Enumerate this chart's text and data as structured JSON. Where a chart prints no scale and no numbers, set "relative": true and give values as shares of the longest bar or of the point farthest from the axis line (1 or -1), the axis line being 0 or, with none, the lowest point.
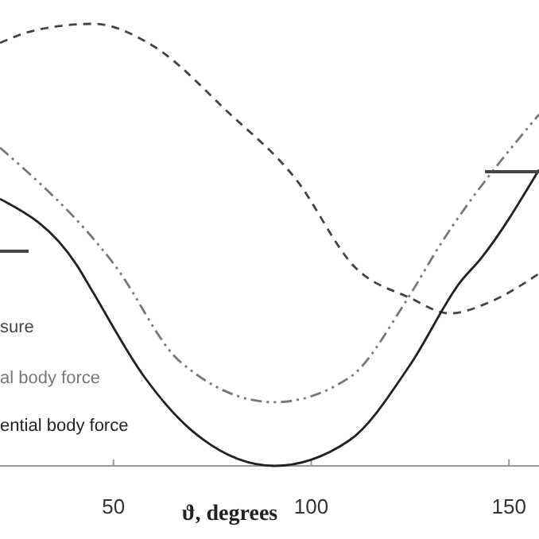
{
  "chart_data": {
    "type": "line",
    "relative": true,
    "xlabel": "ϑ, degrees",
    "xlim": [
      21.3,
      157.6
    ],
    "xticks": [
      50,
      100,
      150
    ],
    "legend": "left",
    "grid": false,
    "series": [
      {
        "name": "sure",
        "color": "#444444",
        "line_style": "dashed",
        "x": [
          21.3,
          30,
          45,
          60,
          79,
          96,
          111,
          125,
          135,
          145,
          157.6
        ],
        "values": [
          0.957,
          0.985,
          1.0,
          0.95,
          0.8,
          0.65,
          0.45,
          0.38,
          0.345,
          0.37,
          0.435
        ]
      },
      {
        "name": "al body force",
        "color": "#777777",
        "line_style": "dashdot",
        "x": [
          21.3,
          50.4,
          66.7,
          90.7,
          109.7,
          123.8,
          132.6,
          157.6
        ],
        "values": [
          0.72,
          0.453,
          0.237,
          0.144,
          0.2,
          0.37,
          0.5,
          0.795
        ]
      },
      {
        "name": "ential body force",
        "color": "#222222",
        "line_style": "solid",
        "x": [
          21.3,
          40.8,
          44.6,
          57.9,
          69.4,
          90.7,
          109.7,
          124.9,
          137.8,
          142.8,
          157.6
        ],
        "values": [
          0.604,
          0.453,
          0.396,
          0.2,
          0.083,
          0,
          0.058,
          0.227,
          0.417,
          0.468,
          0.67
        ]
      }
    ]
  }
}
